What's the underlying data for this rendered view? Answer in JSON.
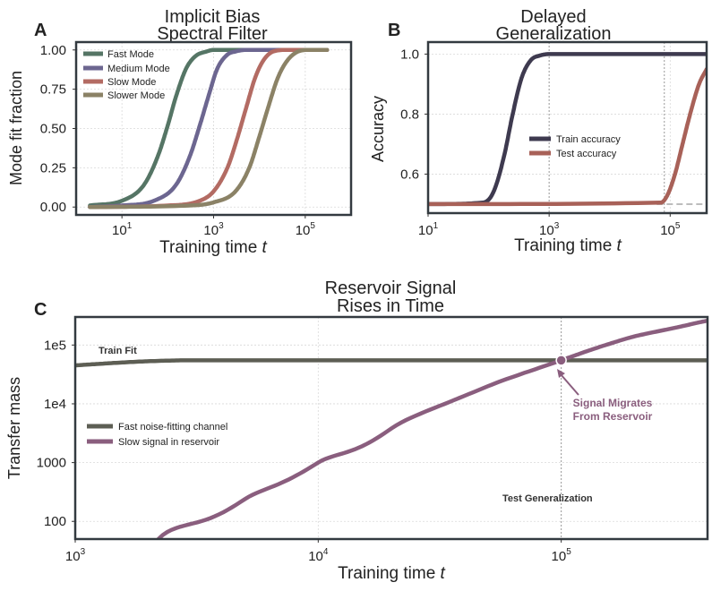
{
  "panels": {
    "a": {
      "letter": "A",
      "title_line1": "Implicit Bias",
      "title_line2": "Spectral Filter"
    },
    "b": {
      "letter": "B",
      "title_line1": "Delayed",
      "title_line2": "Generalization"
    },
    "c": {
      "letter": "C",
      "title_line1": "Reservoir Signal",
      "title_line2": "Rises in Time"
    }
  },
  "colors": {
    "fast": "#557565",
    "medium": "#6c6690",
    "slow": "#b36b63",
    "slower": "#8b8266",
    "train": "#3e3a4f",
    "test": "#a86158",
    "noise": "#5d5e54",
    "signal": "#8a5e7e",
    "frame": "#333a40",
    "grid": "#d9d9d9",
    "dashed": "#bdbdbd"
  },
  "chart_data": [
    {
      "type": "line",
      "xlabel": "Training time t",
      "ylabel": "Mode fit fraction",
      "xscale": "log",
      "xlim": [
        1,
        1000000
      ],
      "ylim": [
        -0.05,
        1.05
      ],
      "xticks": [
        {
          "label": "10",
          "exp": "1",
          "value": 10
        },
        {
          "label": "10",
          "exp": "3",
          "value": 1000
        },
        {
          "label": "10",
          "exp": "5",
          "value": 100000
        }
      ],
      "yticks": [
        0.0,
        0.25,
        0.5,
        0.75,
        1.0
      ],
      "ytick_labels": [
        "0.00",
        "0.25",
        "0.50",
        "0.75",
        "1.00"
      ],
      "legend_position": "upper-left",
      "grid": true,
      "series": [
        {
          "name": "Fast Mode",
          "color_key": "fast",
          "x": [
            2,
            10,
            30,
            60,
            100,
            150,
            250,
            400,
            700,
            1000,
            2000,
            300000
          ],
          "y": [
            0.01,
            0.04,
            0.14,
            0.32,
            0.52,
            0.7,
            0.88,
            0.96,
            0.99,
            1.0,
            1.0,
            1.0
          ]
        },
        {
          "name": "Medium Mode",
          "color_key": "medium",
          "x": [
            2,
            10,
            50,
            150,
            300,
            500,
            800,
            1200,
            2000,
            3000,
            5000,
            300000
          ],
          "y": [
            0.0,
            0.01,
            0.04,
            0.14,
            0.32,
            0.52,
            0.72,
            0.88,
            0.97,
            0.99,
            1.0,
            1.0
          ]
        },
        {
          "name": "Slow Mode",
          "color_key": "slow",
          "x": [
            2,
            100,
            500,
            1000,
            2000,
            3000,
            5000,
            8000,
            12000,
            20000,
            40000,
            300000
          ],
          "y": [
            0.0,
            0.01,
            0.04,
            0.1,
            0.25,
            0.4,
            0.62,
            0.82,
            0.93,
            0.99,
            1.0,
            1.0
          ]
        },
        {
          "name": "Slower Mode",
          "color_key": "slower",
          "x": [
            2,
            300,
            1000,
            3000,
            6000,
            10000,
            15000,
            25000,
            40000,
            70000,
            120000,
            300000
          ],
          "y": [
            0.0,
            0.01,
            0.03,
            0.1,
            0.25,
            0.45,
            0.62,
            0.82,
            0.93,
            0.99,
            1.0,
            1.0
          ]
        }
      ]
    },
    {
      "type": "line",
      "xlabel": "Training time t",
      "ylabel": "Accuracy",
      "xscale": "log",
      "xlim": [
        10,
        400000
      ],
      "ylim": [
        0.47,
        1.04
      ],
      "xticks": [
        {
          "label": "10",
          "exp": "1",
          "value": 10
        },
        {
          "label": "10",
          "exp": "3",
          "value": 1000
        },
        {
          "label": "10",
          "exp": "5",
          "value": 100000
        }
      ],
      "yticks": [
        0.6,
        0.8,
        1.0
      ],
      "ytick_labels": [
        "0.6",
        "0.8",
        "1.0"
      ],
      "vlines": [
        1000,
        80000
      ],
      "hline_dashed": {
        "y": 0.5,
        "from_x": 60000
      },
      "legend_position": "center-right",
      "grid": true,
      "series": [
        {
          "name": "Train accuracy",
          "color_key": "train",
          "x": [
            10,
            80,
            120,
            180,
            250,
            350,
            500,
            700,
            1000,
            400000
          ],
          "y": [
            0.5,
            0.505,
            0.54,
            0.66,
            0.8,
            0.92,
            0.98,
            0.995,
            1.0,
            1.0
          ]
        },
        {
          "name": "Test accuracy",
          "color_key": "test",
          "x": [
            10,
            70000,
            90000,
            120000,
            160000,
            220000,
            300000,
            400000
          ],
          "y": [
            0.5,
            0.505,
            0.53,
            0.6,
            0.7,
            0.81,
            0.9,
            0.95
          ]
        }
      ]
    },
    {
      "type": "line",
      "xlabel": "Training time t",
      "ylabel": "Transfer mass",
      "xscale": "log",
      "yscale": "log",
      "xlim": [
        1000,
        400000
      ],
      "ylim": [
        50,
        300000
      ],
      "xticks": [
        {
          "label": "10",
          "exp": "3",
          "value": 1000
        },
        {
          "label": "10",
          "exp": "4",
          "value": 10000
        },
        {
          "label": "10",
          "exp": "5",
          "value": 100000
        }
      ],
      "yticks": [
        100,
        1000,
        10000,
        100000
      ],
      "ytick_labels": [
        "100",
        "1000",
        "1e4",
        "1e5"
      ],
      "vline": 100000,
      "legend_position": "center-left",
      "grid": true,
      "series": [
        {
          "name": "Fast noise-fitting channel",
          "color_key": "noise",
          "x": [
            1000,
            1500,
            2000,
            3000,
            5000,
            10000,
            400000
          ],
          "y": [
            45000,
            50000,
            53000,
            55000,
            55000,
            55000,
            55000
          ]
        },
        {
          "name": "Slow signal in reservoir",
          "color_key": "signal",
          "x": [
            2200,
            5000,
            10000,
            20000,
            50000,
            100000,
            150000,
            200000,
            300000,
            400000
          ],
          "y": [
            50,
            240,
            1000,
            3800,
            20000,
            55000,
            98000,
            140000,
            200000,
            260000
          ]
        }
      ],
      "marker": {
        "x": 100000,
        "y": 55000
      },
      "annotations": {
        "train_fit": "Train Fit",
        "test_generalization": "Test Generalization",
        "migrate_line1": "Signal Migrates",
        "migrate_line2": "From Reservoir"
      }
    }
  ]
}
